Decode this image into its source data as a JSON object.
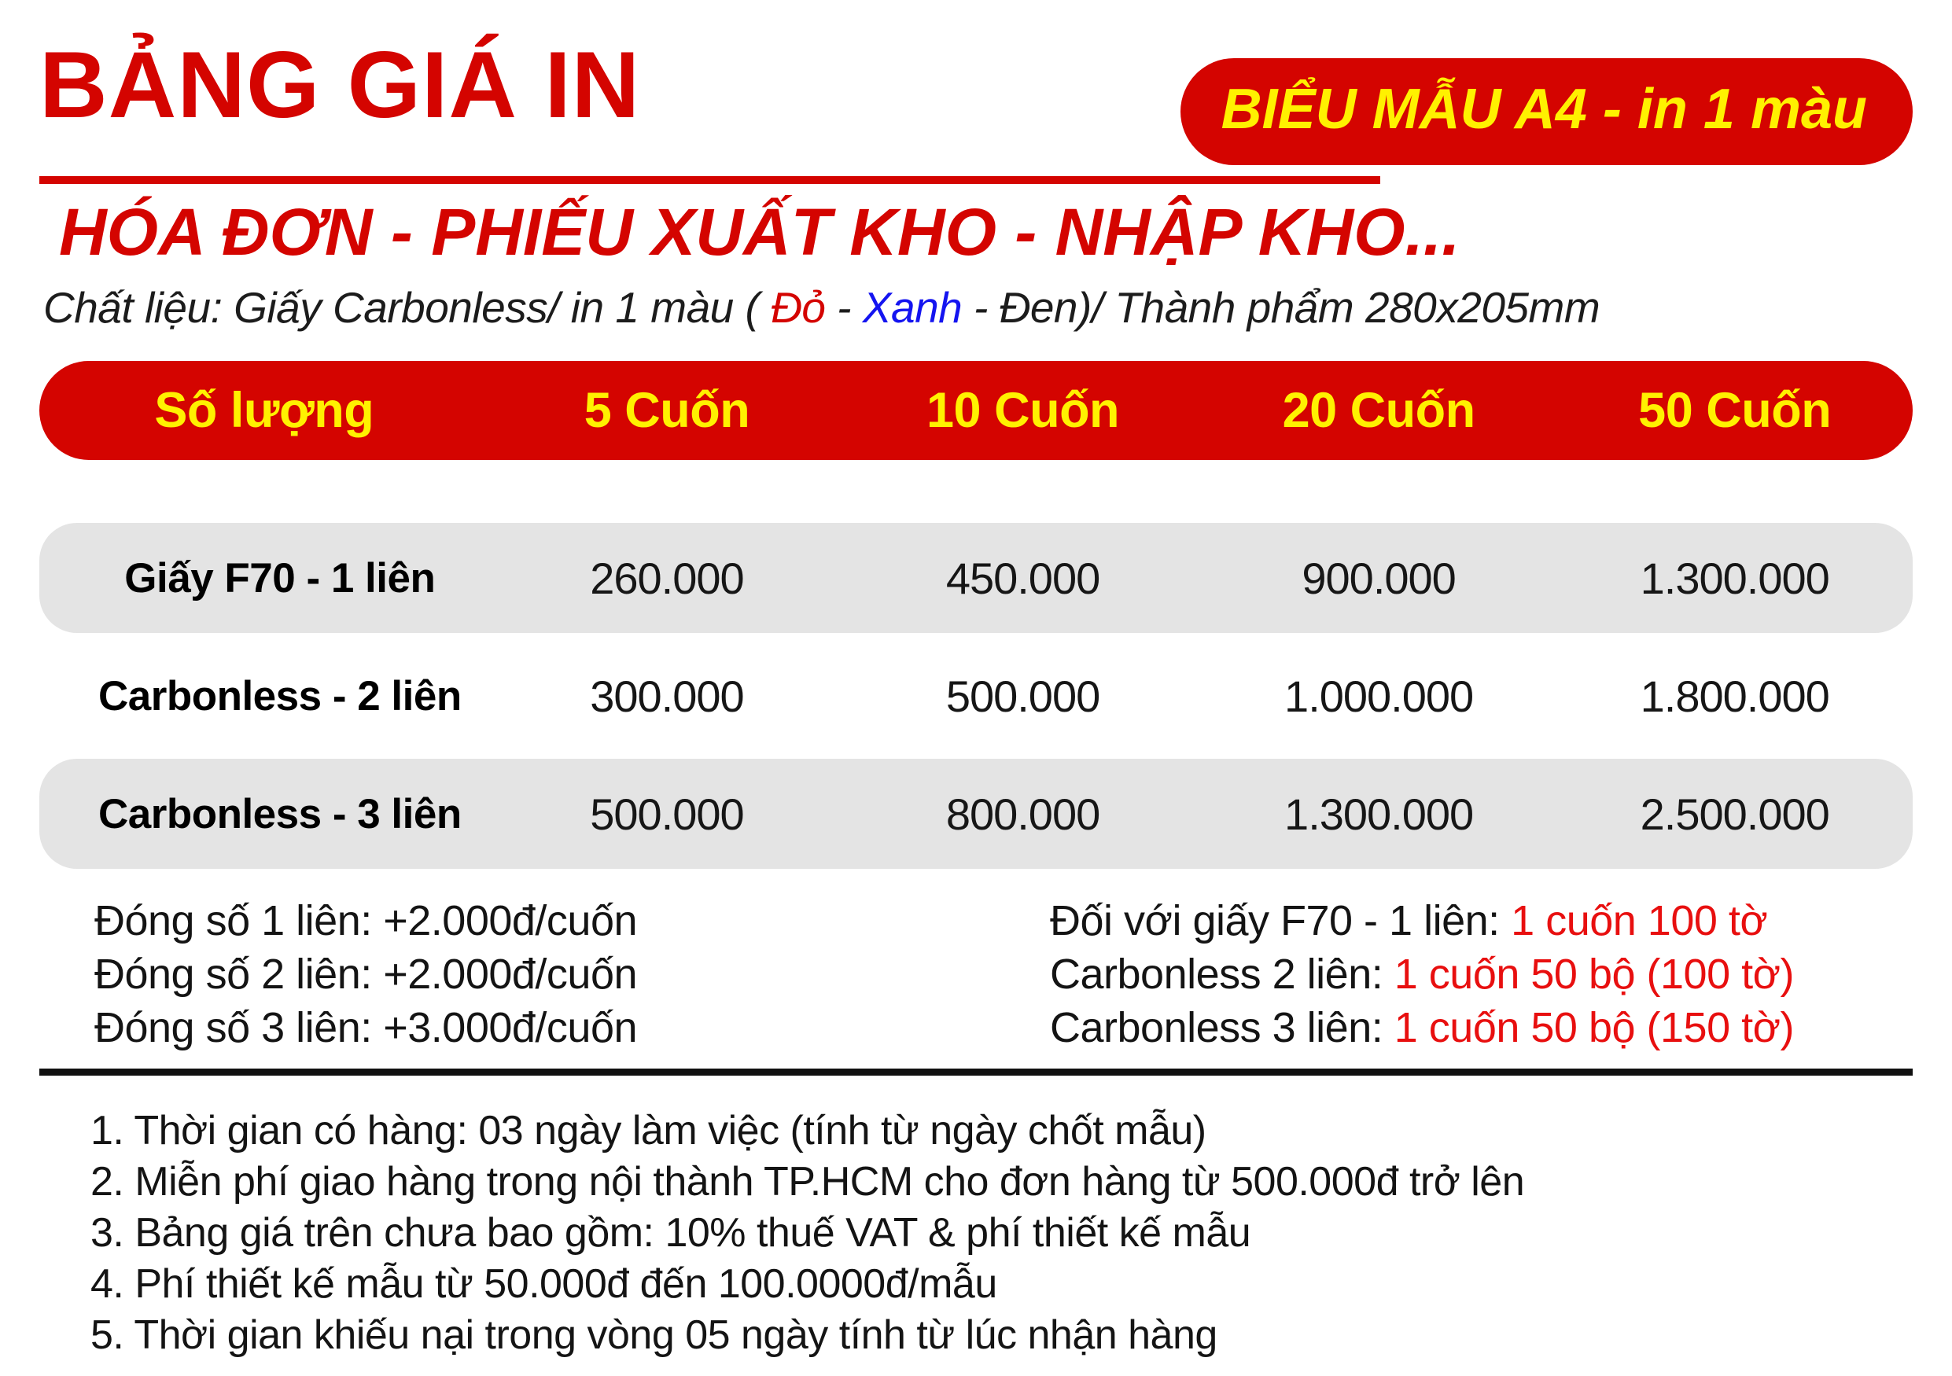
{
  "header": {
    "title": "BẢNG GIÁ IN",
    "badge": "BIỂU MẪU A4 - in 1 màu",
    "subtitle": "HÓA ĐƠN - PHIẾU XUẤT KHO - NHẬP KHO...",
    "material": {
      "prefix": "Chất liệu: Giấy Carbonless/ in 1 màu ( ",
      "red_word": "Đỏ",
      "sep1": " - ",
      "blue_word": "Xanh",
      "suffix": " - Đen)/ Thành phẩm 280x205mm"
    }
  },
  "colors": {
    "red": "#d40400",
    "yellow": "#fff100",
    "blue": "#1414f0",
    "gray_row": "#e4e4e4"
  },
  "table": {
    "headers": [
      "Số lượng",
      "5 Cuốn",
      "10 Cuốn",
      "20 Cuốn",
      "50 Cuốn"
    ],
    "rows": [
      {
        "label": "Giấy F70 - 1 liên",
        "values": [
          "260.000",
          "450.000",
          "900.000",
          "1.300.000"
        ]
      },
      {
        "label": "Carbonless - 2 liên",
        "values": [
          "300.000",
          "500.000",
          "1.000.000",
          "1.800.000"
        ]
      },
      {
        "label": "Carbonless - 3 liên",
        "values": [
          "500.000",
          "800.000",
          "1.300.000",
          "2.500.000"
        ]
      }
    ]
  },
  "notes": {
    "left": [
      "Đóng số 1 liên: +2.000đ/cuốn",
      "Đóng số 2 liên: +2.000đ/cuốn",
      "Đóng số 3 liên: +3.000đ/cuốn"
    ],
    "right": [
      {
        "label": "Đối với giấy F70 - 1 liên: ",
        "value": "1 cuốn 100 tờ"
      },
      {
        "label": "Carbonless 2 liên: ",
        "value": "1 cuốn 50 bộ (100 tờ)"
      },
      {
        "label": "Carbonless 3 liên: ",
        "value": "1 cuốn 50 bộ (150 tờ)"
      }
    ]
  },
  "terms": [
    "1. Thời gian có hàng: 03 ngày làm việc (tính từ ngày chốt mẫu)",
    "2. Miễn phí giao hàng trong nội thành TP.HCM cho đơn hàng từ 500.000đ trở lên",
    "3. Bảng giá trên chưa bao gồm: 10% thuế VAT & phí thiết kế mẫu",
    "4. Phí thiết kế mẫu từ 50.000đ đến 100.0000đ/mẫu",
    "5. Thời gian khiếu nại trong vòng 05 ngày tính từ lúc nhận hàng"
  ]
}
